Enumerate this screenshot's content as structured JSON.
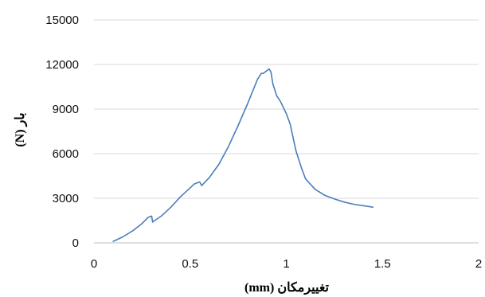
{
  "chart_data": {
    "type": "line",
    "xlabel": "تغییرمکان (mm)",
    "ylabel": "بار (N)",
    "xlim": [
      0,
      2
    ],
    "ylim": [
      0,
      15000
    ],
    "x_ticks": [
      0,
      0.5,
      1,
      1.5,
      2
    ],
    "x_tick_labels": [
      "0",
      "0.5",
      "1",
      "1.5",
      "2"
    ],
    "y_ticks": [
      0,
      3000,
      6000,
      9000,
      12000,
      15000
    ],
    "y_tick_labels": [
      "0",
      "3000",
      "6000",
      "9000",
      "12000",
      "15000"
    ],
    "grid": "horizontal",
    "legend": "none",
    "line_color": "#4a7ebb",
    "series": [
      {
        "x": [
          0.1,
          0.15,
          0.2,
          0.25,
          0.28,
          0.3,
          0.305,
          0.31,
          0.35,
          0.4,
          0.45,
          0.5,
          0.52,
          0.54,
          0.55,
          0.56,
          0.6,
          0.65,
          0.7,
          0.75,
          0.8,
          0.85,
          0.87,
          0.88,
          0.9,
          0.91,
          0.92,
          0.93,
          0.95,
          0.97,
          1.0,
          1.02,
          1.05,
          1.08,
          1.1,
          1.15,
          1.2,
          1.25,
          1.3,
          1.35,
          1.4,
          1.45
        ],
        "y": [
          100,
          400,
          800,
          1300,
          1700,
          1800,
          1400,
          1450,
          1800,
          2400,
          3100,
          3700,
          3950,
          4050,
          4100,
          3850,
          4400,
          5300,
          6500,
          7900,
          9400,
          11000,
          11400,
          11400,
          11600,
          11700,
          11500,
          10700,
          9900,
          9500,
          8700,
          8000,
          6200,
          5000,
          4300,
          3600,
          3200,
          2950,
          2750,
          2600,
          2500,
          2400
        ]
      }
    ]
  }
}
